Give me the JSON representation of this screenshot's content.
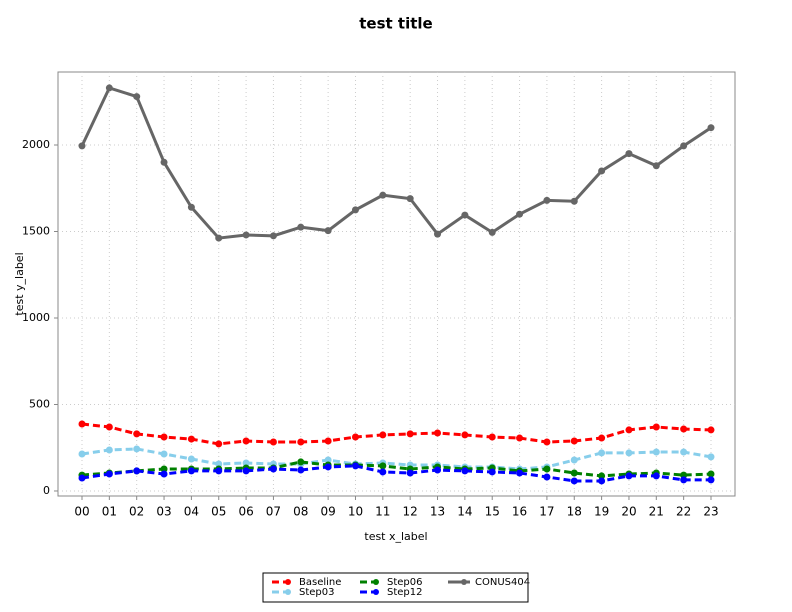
{
  "chart_data": {
    "type": "line",
    "title": "test title",
    "x_label": "test x_label",
    "y_label": "test y_label",
    "categories": [
      "00",
      "01",
      "02",
      "03",
      "04",
      "05",
      "06",
      "07",
      "08",
      "09",
      "10",
      "11",
      "12",
      "13",
      "14",
      "15",
      "16",
      "17",
      "18",
      "19",
      "20",
      "21",
      "22",
      "23"
    ],
    "series": [
      {
        "name": "Baseline",
        "color": "#ff0000",
        "linestyle": "dashed",
        "values": [
          387,
          370,
          330,
          312,
          300,
          272,
          289,
          283,
          283,
          289,
          312,
          324,
          330,
          335,
          324,
          312,
          306,
          283,
          289,
          306,
          353,
          370,
          358,
          353
        ]
      },
      {
        "name": "Step03",
        "color": "#87ceeb",
        "linestyle": "dashed",
        "values": [
          214,
          237,
          243,
          214,
          185,
          156,
          162,
          156,
          156,
          179,
          156,
          162,
          150,
          150,
          139,
          139,
          127,
          139,
          179,
          220,
          220,
          225,
          225,
          197
        ]
      },
      {
        "name": "Step06",
        "color": "#008000",
        "linestyle": "dashed",
        "values": [
          92,
          104,
          116,
          127,
          127,
          127,
          133,
          133,
          168,
          150,
          150,
          145,
          127,
          139,
          127,
          133,
          116,
          127,
          104,
          87,
          98,
          104,
          92,
          98
        ]
      },
      {
        "name": "Step12",
        "color": "#0000ff",
        "linestyle": "dashed",
        "values": [
          75,
          98,
          116,
          98,
          116,
          116,
          116,
          127,
          121,
          139,
          145,
          110,
          104,
          121,
          116,
          110,
          104,
          81,
          58,
          58,
          87,
          87,
          64,
          64
        ]
      },
      {
        "name": "CONUS404",
        "color": "#666666",
        "linestyle": "solid",
        "values": [
          1995,
          2330,
          2280,
          1900,
          1640,
          1462,
          1480,
          1475,
          1525,
          1505,
          1625,
          1710,
          1690,
          1485,
          1595,
          1495,
          1600,
          1680,
          1675,
          1850,
          1950,
          1880,
          1995,
          2100
        ]
      }
    ],
    "ylim": [
      -29,
      2422
    ],
    "yticks": [
      0,
      500,
      1000,
      1500,
      2000
    ],
    "grid": true,
    "legend": "bottom"
  }
}
